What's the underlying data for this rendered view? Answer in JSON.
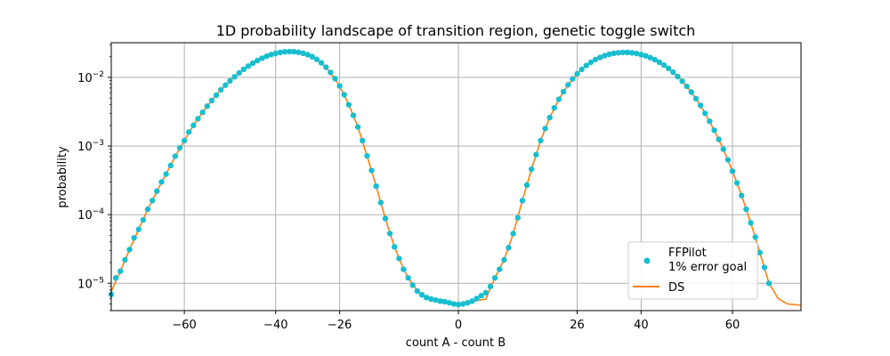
{
  "colors": {
    "ffpilot": "#17becf",
    "ds": "#ff7f0e",
    "grid": "#b0b0b0",
    "background": "#ffffff",
    "axes": "#000000"
  },
  "chart_data": {
    "type": "scatter",
    "title": "1D probability landscape of transition region, genetic toggle switch",
    "xlabel": "count A - count B",
    "ylabel": "probability",
    "xlim": [
      -76,
      75
    ],
    "ylim": [
      4e-06,
      0.032
    ],
    "yscale": "log",
    "grid": true,
    "legend_position": "lower-right",
    "xticks": [
      -60,
      -40,
      -26,
      0,
      26,
      40,
      60
    ],
    "xtick_labels": [
      "−60",
      "−40",
      "−26",
      "0",
      "26",
      "40",
      "60"
    ],
    "yticks": [
      1e-05,
      0.0001,
      0.001,
      0.01
    ],
    "ytick_labels": [
      {
        "base": "10",
        "exp": "−5"
      },
      {
        "base": "10",
        "exp": "−4"
      },
      {
        "base": "10",
        "exp": "−3"
      },
      {
        "base": "10",
        "exp": "−2"
      }
    ],
    "series": [
      {
        "name": "FFPilot\n1% error goal",
        "label_lines": [
          "FFPilot",
          "1% error goal"
        ],
        "style": "markers",
        "color": "#17becf",
        "points": [
          [
            -76,
            6.9e-06
          ],
          [
            -75,
            1.2e-05
          ],
          [
            -74,
            1.5e-05
          ],
          [
            -73,
            2.2e-05
          ],
          [
            -72,
            3.1e-05
          ],
          [
            -71,
            4.6e-05
          ],
          [
            -70,
            6.1e-05
          ],
          [
            -69,
            8.4e-05
          ],
          [
            -68,
            0.00012
          ],
          [
            -67,
            0.00016
          ],
          [
            -66,
            0.00022
          ],
          [
            -65,
            0.0003
          ],
          [
            -64,
            0.00039
          ],
          [
            -63,
            0.00052
          ],
          [
            -62,
            0.00071
          ],
          [
            -61,
            0.00094
          ],
          [
            -60,
            0.0012
          ],
          [
            -59,
            0.0016
          ],
          [
            -58,
            0.002
          ],
          [
            -57,
            0.0025
          ],
          [
            -56,
            0.0031
          ],
          [
            -55,
            0.0038
          ],
          [
            -54,
            0.0046
          ],
          [
            -53,
            0.0055
          ],
          [
            -52,
            0.0066
          ],
          [
            -51,
            0.0077
          ],
          [
            -50,
            0.0089
          ],
          [
            -49,
            0.0102
          ],
          [
            -48,
            0.0116
          ],
          [
            -47,
            0.0131
          ],
          [
            -46,
            0.0146
          ],
          [
            -45,
            0.0161
          ],
          [
            -44,
            0.0176
          ],
          [
            -43,
            0.019
          ],
          [
            -42,
            0.0203
          ],
          [
            -41,
            0.0215
          ],
          [
            -40,
            0.0224
          ],
          [
            -39,
            0.0231
          ],
          [
            -38,
            0.0236
          ],
          [
            -37,
            0.0238
          ],
          [
            -36,
            0.0237
          ],
          [
            -35,
            0.0232
          ],
          [
            -34,
            0.0225
          ],
          [
            -33,
            0.0214
          ],
          [
            -32,
            0.02
          ],
          [
            -31,
            0.0183
          ],
          [
            -30,
            0.0163
          ],
          [
            -29,
            0.0141
          ],
          [
            -28,
            0.0118
          ],
          [
            -27,
            0.0096
          ],
          [
            -26,
            0.0075
          ],
          [
            -25,
            0.0056
          ],
          [
            -24,
            0.004
          ],
          [
            -23,
            0.0028
          ],
          [
            -22,
            0.0019
          ],
          [
            -21,
            0.0012
          ],
          [
            -20,
            0.00072
          ],
          [
            -19,
            0.00044
          ],
          [
            -18,
            0.00026
          ],
          [
            -17,
            0.00015
          ],
          [
            -16,
            8.8e-05
          ],
          [
            -15,
            5.3e-05
          ],
          [
            -14,
            3.4e-05
          ],
          [
            -13,
            2.3e-05
          ],
          [
            -12,
            1.6e-05
          ],
          [
            -11,
            1.2e-05
          ],
          [
            -10,
            9.4e-06
          ],
          [
            -9,
            7.7e-06
          ],
          [
            -8,
            6.8e-06
          ],
          [
            -7,
            6.2e-06
          ],
          [
            -6,
            5.9e-06
          ],
          [
            -5,
            5.7e-06
          ],
          [
            -4,
            5.5e-06
          ],
          [
            -3,
            5.4e-06
          ],
          [
            -2,
            5.2e-06
          ],
          [
            -1,
            5e-06
          ],
          [
            0,
            4.9e-06
          ],
          [
            1,
            5e-06
          ],
          [
            2,
            5.2e-06
          ],
          [
            3,
            5.5e-06
          ],
          [
            4,
            6e-06
          ],
          [
            5,
            6.6e-06
          ],
          [
            6,
            7.3e-06
          ],
          [
            7,
            9e-06
          ],
          [
            8,
            1.2e-05
          ],
          [
            9,
            1.6e-05
          ],
          [
            10,
            2.2e-05
          ],
          [
            11,
            3.3e-05
          ],
          [
            12,
            5.3e-05
          ],
          [
            13,
            9e-05
          ],
          [
            14,
            0.00016
          ],
          [
            15,
            0.00027
          ],
          [
            16,
            0.00046
          ],
          [
            17,
            0.00075
          ],
          [
            18,
            0.0012
          ],
          [
            19,
            0.0018
          ],
          [
            20,
            0.0026
          ],
          [
            21,
            0.0036
          ],
          [
            22,
            0.0048
          ],
          [
            23,
            0.0062
          ],
          [
            24,
            0.0078
          ],
          [
            25,
            0.0095
          ],
          [
            26,
            0.0113
          ],
          [
            27,
            0.0131
          ],
          [
            28,
            0.0149
          ],
          [
            29,
            0.0166
          ],
          [
            30,
            0.0182
          ],
          [
            31,
            0.0195
          ],
          [
            32,
            0.0207
          ],
          [
            33,
            0.0217
          ],
          [
            34,
            0.0224
          ],
          [
            35,
            0.0229
          ],
          [
            36,
            0.0231
          ],
          [
            37,
            0.0231
          ],
          [
            38,
            0.0228
          ],
          [
            39,
            0.0223
          ],
          [
            40,
            0.0215
          ],
          [
            41,
            0.0206
          ],
          [
            42,
            0.0194
          ],
          [
            43,
            0.0181
          ],
          [
            44,
            0.0166
          ],
          [
            45,
            0.0151
          ],
          [
            46,
            0.0135
          ],
          [
            47,
            0.0119
          ],
          [
            48,
            0.0103
          ],
          [
            49,
            0.0088
          ],
          [
            50,
            0.0074
          ],
          [
            51,
            0.0061
          ],
          [
            52,
            0.0049
          ],
          [
            53,
            0.0039
          ],
          [
            54,
            0.003
          ],
          [
            55,
            0.0023
          ],
          [
            56,
            0.0017
          ],
          [
            57,
            0.00125
          ],
          [
            58,
            0.0009
          ],
          [
            59,
            0.00063
          ],
          [
            60,
            0.00043
          ],
          [
            61,
            0.00029
          ],
          [
            62,
            0.00019
          ],
          [
            63,
            0.00012
          ],
          [
            64,
            7.6e-05
          ],
          [
            65,
            4.7e-05
          ],
          [
            66,
            2.8e-05
          ],
          [
            67,
            1.7e-05
          ],
          [
            68,
            1e-05
          ]
        ]
      },
      {
        "name": "DS",
        "label_lines": [
          "DS"
        ],
        "style": "line",
        "color": "#ff7f0e",
        "points": [
          [
            -76,
            7.6e-06
          ],
          [
            -74,
            1.5e-05
          ],
          [
            -72,
            3.1e-05
          ],
          [
            -70,
            6.1e-05
          ],
          [
            -68,
            0.00012
          ],
          [
            -66,
            0.00022
          ],
          [
            -64,
            0.00039
          ],
          [
            -62,
            0.0007
          ],
          [
            -60,
            0.0012
          ],
          [
            -58,
            0.002
          ],
          [
            -56,
            0.0031
          ],
          [
            -54,
            0.0046
          ],
          [
            -52,
            0.0066
          ],
          [
            -50,
            0.0089
          ],
          [
            -48,
            0.0116
          ],
          [
            -46,
            0.0146
          ],
          [
            -44,
            0.0176
          ],
          [
            -42,
            0.0203
          ],
          [
            -40,
            0.0224
          ],
          [
            -38,
            0.0236
          ],
          [
            -37,
            0.0238
          ],
          [
            -36,
            0.0237
          ],
          [
            -34,
            0.0225
          ],
          [
            -32,
            0.02
          ],
          [
            -30,
            0.0163
          ],
          [
            -28,
            0.0118
          ],
          [
            -26,
            0.0075
          ],
          [
            -24,
            0.004
          ],
          [
            -22,
            0.0019
          ],
          [
            -20,
            0.00072
          ],
          [
            -18,
            0.00026
          ],
          [
            -16,
            8.8e-05
          ],
          [
            -14,
            3.4e-05
          ],
          [
            -12,
            1.6e-05
          ],
          [
            -10,
            9.4e-06
          ],
          [
            -8,
            6.8e-06
          ],
          [
            -6,
            5.9e-06
          ],
          [
            -4,
            5.5e-06
          ],
          [
            -2,
            5.3e-06
          ],
          [
            0,
            5e-06
          ],
          [
            2,
            5.2e-06
          ],
          [
            4,
            5.6e-06
          ],
          [
            6,
            5.9e-06
          ],
          [
            7,
            8.5e-06
          ],
          [
            8,
            1.2e-05
          ],
          [
            10,
            2.2e-05
          ],
          [
            12,
            5.3e-05
          ],
          [
            14,
            0.00016
          ],
          [
            16,
            0.00046
          ],
          [
            18,
            0.0012
          ],
          [
            20,
            0.0026
          ],
          [
            22,
            0.0048
          ],
          [
            24,
            0.0078
          ],
          [
            26,
            0.0113
          ],
          [
            28,
            0.0149
          ],
          [
            30,
            0.0182
          ],
          [
            32,
            0.0207
          ],
          [
            34,
            0.0224
          ],
          [
            36,
            0.0232
          ],
          [
            37,
            0.0232
          ],
          [
            38,
            0.0229
          ],
          [
            40,
            0.0216
          ],
          [
            42,
            0.0194
          ],
          [
            44,
            0.0166
          ],
          [
            46,
            0.0135
          ],
          [
            48,
            0.0103
          ],
          [
            50,
            0.0074
          ],
          [
            52,
            0.0049
          ],
          [
            54,
            0.003
          ],
          [
            56,
            0.0017
          ],
          [
            58,
            0.0009
          ],
          [
            60,
            0.00043
          ],
          [
            62,
            0.00019
          ],
          [
            64,
            7.6e-05
          ],
          [
            66,
            2.8e-05
          ],
          [
            68,
            1e-05
          ],
          [
            70,
            6e-06
          ],
          [
            72,
            5e-06
          ],
          [
            75,
            4.8e-06
          ]
        ]
      }
    ]
  }
}
